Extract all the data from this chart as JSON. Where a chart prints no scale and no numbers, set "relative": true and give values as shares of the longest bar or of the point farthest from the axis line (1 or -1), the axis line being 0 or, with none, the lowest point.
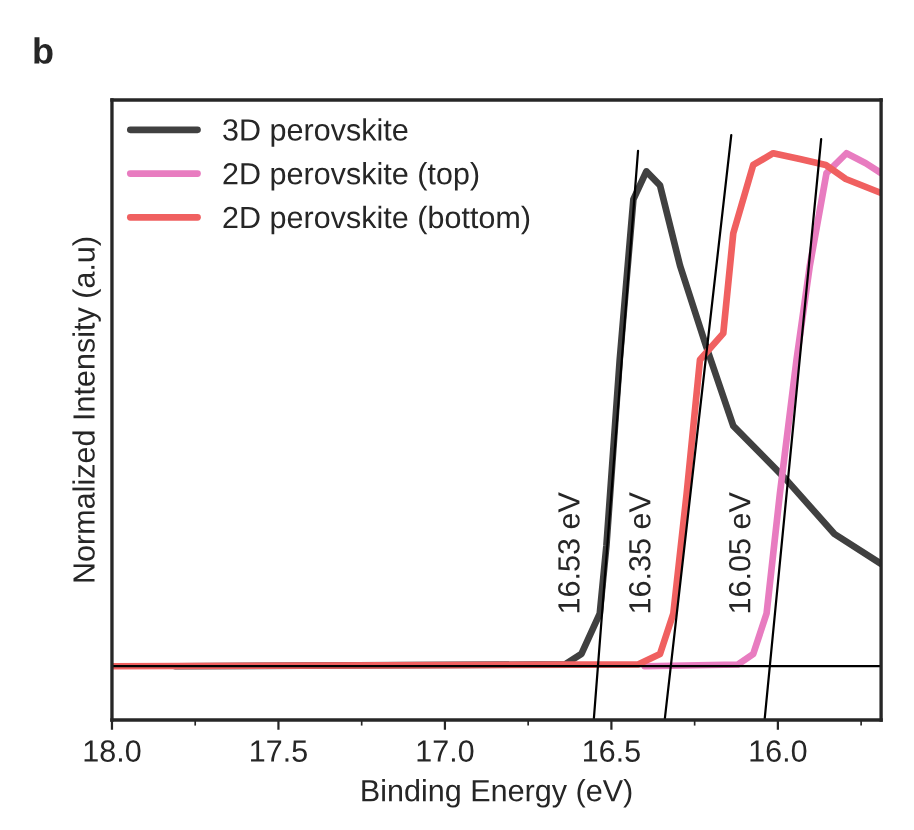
{
  "chart_data": {
    "type": "line",
    "title": "b",
    "xlabel": "Binding Energy (eV)",
    "ylabel": "Normalized Intensity (a.u)",
    "relative": true,
    "xlim": [
      18.0,
      15.69
    ],
    "xticks": [
      {
        "value": 18.0,
        "label": "18.0"
      },
      {
        "value": 17.5,
        "label": "17.5"
      },
      {
        "value": 17.0,
        "label": "17.0"
      },
      {
        "value": 16.5,
        "label": "16.5"
      },
      {
        "value": 16.0,
        "label": "16.0"
      }
    ],
    "tick_labels": "x",
    "legend": "top left",
    "grid": false,
    "series": [
      {
        "name": "3D perovskite",
        "color": "#404040",
        "x": [
          17.81,
          16.64,
          16.59,
          16.535,
          16.515,
          16.475,
          16.434,
          16.395,
          16.354,
          16.294,
          16.216,
          16.134,
          15.975,
          15.83,
          15.69
        ],
        "values": [
          0.092,
          0.095,
          0.113,
          0.182,
          0.298,
          0.616,
          0.89,
          0.938,
          0.914,
          0.777,
          0.64,
          0.503,
          0.411,
          0.318,
          0.267
        ]
      },
      {
        "name": "2D perovskite (top)",
        "color": "#e87cc0",
        "x": [
          16.4,
          16.12,
          16.074,
          16.034,
          15.994,
          15.944,
          15.904,
          15.854,
          15.794,
          15.736,
          15.69
        ],
        "values": [
          0.092,
          0.095,
          0.113,
          0.182,
          0.387,
          0.616,
          0.777,
          0.935,
          0.969,
          0.952,
          0.935
        ]
      },
      {
        "name": "2D perovskite (bottom)",
        "color": "#f06060",
        "x": [
          18.0,
          16.42,
          16.354,
          16.314,
          16.274,
          16.234,
          16.164,
          16.134,
          16.074,
          16.014,
          15.934,
          15.856,
          15.796,
          15.69
        ],
        "values": [
          0.092,
          0.095,
          0.113,
          0.182,
          0.387,
          0.616,
          0.661,
          0.832,
          0.949,
          0.969,
          0.959,
          0.949,
          0.925,
          0.901
        ]
      },
      {
        "color": "#000000",
        "x": [
          16.553,
          16.42
        ],
        "values": [
          0,
          0.973
        ]
      },
      {
        "color": "#000000",
        "x": [
          16.34,
          16.14
        ],
        "values": [
          0,
          1.0
        ]
      },
      {
        "color": "#000000",
        "x": [
          16.04,
          15.87
        ],
        "values": [
          0,
          0.993
        ]
      }
    ],
    "ref_lines": [
      {
        "axis": "y",
        "value": 0.092,
        "color": "#000000"
      }
    ],
    "annotations": [
      "16.53 eV",
      "16.35 eV",
      "16.05 eV"
    ]
  }
}
